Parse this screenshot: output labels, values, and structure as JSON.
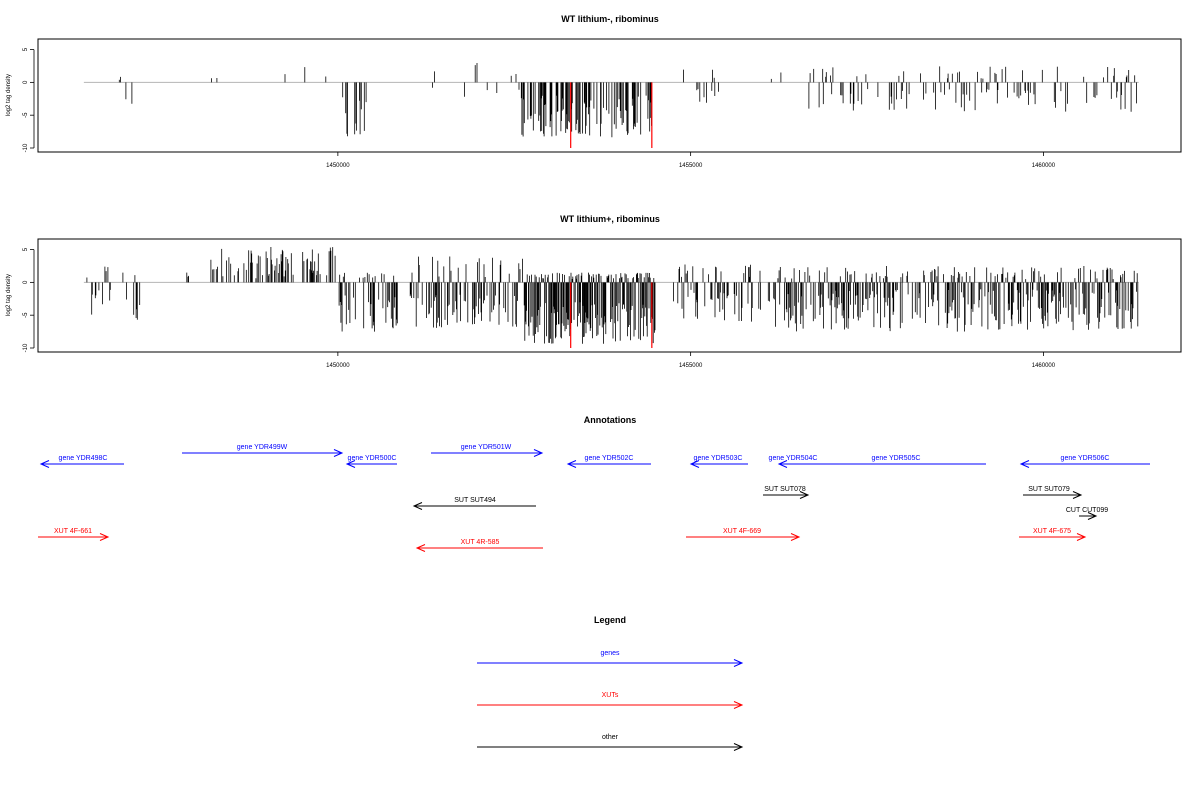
{
  "colors": {
    "genes": "#0000ff",
    "xuts": "#ff0000",
    "other": "#000000",
    "bars": "#000000",
    "highlight": "#ff0000",
    "baseline": "#b4b4b4"
  },
  "chart_data": [
    {
      "type": "bar",
      "title": "WT lithium-, ribominus",
      "ylabel": "log2 tag density",
      "ylim": [
        -10,
        6
      ],
      "yticks": [
        -10,
        -5,
        0,
        5
      ],
      "xlim": [
        1445750,
        1461950
      ],
      "xticks": [
        1450000,
        1455000,
        1460000
      ],
      "segments": [
        {
          "start": 1446400,
          "end": 1447200,
          "up": [
            0,
            3
          ],
          "down": [
            -1,
            -4.5
          ],
          "density": 0.06
        },
        {
          "start": 1448200,
          "end": 1448300,
          "up": [
            0.5,
            1
          ],
          "down": [
            0,
            0
          ],
          "density": 0.2
        },
        {
          "start": 1449200,
          "end": 1449900,
          "up": [
            0.5,
            3.5
          ],
          "down": [
            0,
            0
          ],
          "density": 0.05
        },
        {
          "start": 1450000,
          "end": 1450400,
          "up": [
            0,
            0
          ],
          "down": [
            -2,
            -8.5
          ],
          "density": 0.3
        },
        {
          "start": 1451300,
          "end": 1451400,
          "up": [
            0.5,
            2
          ],
          "down": [
            -0.5,
            -1
          ],
          "density": 0.08
        },
        {
          "start": 1451700,
          "end": 1452600,
          "up": [
            0.5,
            3
          ],
          "down": [
            -1,
            -2.5
          ],
          "density": 0.05
        },
        {
          "start": 1452600,
          "end": 1454450,
          "up": [
            0,
            0
          ],
          "down": [
            -2,
            -8.5
          ],
          "density": 0.45
        },
        {
          "start": 1454900,
          "end": 1455400,
          "up": [
            0.5,
            3.5
          ],
          "down": [
            -1,
            -3.5
          ],
          "density": 0.1
        },
        {
          "start": 1456100,
          "end": 1456300,
          "up": [
            0.5,
            2
          ],
          "down": [
            0,
            0
          ],
          "density": 0.1
        },
        {
          "start": 1456600,
          "end": 1461350,
          "up": [
            0.5,
            2.5
          ],
          "down": [
            -1,
            -4.5
          ],
          "density": 0.2
        }
      ],
      "highlights": [
        {
          "x": 1453300,
          "value": -10
        },
        {
          "x": 1454450,
          "value": -10
        }
      ]
    },
    {
      "type": "bar",
      "title": "WT lithium+, ribominus",
      "ylabel": "log2 tag density",
      "ylim": [
        -10,
        6
      ],
      "yticks": [
        -10,
        -5,
        0,
        5
      ],
      "xlim": [
        1445750,
        1461950
      ],
      "xticks": [
        1450000,
        1455000,
        1460000
      ],
      "segments": [
        {
          "start": 1446400,
          "end": 1447200,
          "up": [
            0.5,
            2.5
          ],
          "down": [
            -1,
            -6
          ],
          "density": 0.15
        },
        {
          "start": 1447800,
          "end": 1448000,
          "up": [
            0.5,
            1.5
          ],
          "down": [
            0,
            0
          ],
          "density": 0.05
        },
        {
          "start": 1448100,
          "end": 1448200,
          "up": [
            0,
            0
          ],
          "down": [
            -0.5,
            -1
          ],
          "density": 0.05
        },
        {
          "start": 1448200,
          "end": 1450000,
          "up": [
            0.5,
            5.5
          ],
          "down": [
            0,
            0
          ],
          "density": 0.35
        },
        {
          "start": 1450000,
          "end": 1450850,
          "up": [
            0.5,
            1.5
          ],
          "down": [
            -2,
            -7.5
          ],
          "density": 0.45
        },
        {
          "start": 1451000,
          "end": 1452650,
          "up": [
            0.5,
            4
          ],
          "down": [
            -1.5,
            -7
          ],
          "density": 0.45
        },
        {
          "start": 1452650,
          "end": 1454500,
          "up": [
            0.5,
            1.5
          ],
          "down": [
            -3,
            -9.5
          ],
          "density": 0.9
        },
        {
          "start": 1454750,
          "end": 1456000,
          "up": [
            0.5,
            3
          ],
          "down": [
            -1,
            -6
          ],
          "density": 0.45
        },
        {
          "start": 1456100,
          "end": 1461350,
          "up": [
            0.5,
            2.5
          ],
          "down": [
            -1,
            -7.5
          ],
          "density": 0.5
        }
      ],
      "highlights": [
        {
          "x": 1453300,
          "value": -10
        },
        {
          "x": 1454450,
          "value": -10
        }
      ]
    }
  ],
  "annotations": {
    "title": "Annotations",
    "items": [
      {
        "label": "gene YDR498C",
        "kind": "genes",
        "dir": "left"
      },
      {
        "label": "gene YDR499W",
        "kind": "genes",
        "dir": "right"
      },
      {
        "label": "gene YDR500C",
        "kind": "genes",
        "dir": "left"
      },
      {
        "label": "gene YDR501W",
        "kind": "genes",
        "dir": "right"
      },
      {
        "label": "gene YDR502C",
        "kind": "genes",
        "dir": "left"
      },
      {
        "label": "gene YDR503C",
        "kind": "genes",
        "dir": "left"
      },
      {
        "label": "gene YDR504C",
        "kind": "genes",
        "dir": "left"
      },
      {
        "label": "gene YDR505C",
        "kind": "genes",
        "dir": "left"
      },
      {
        "label": "gene YDR506C",
        "kind": "genes",
        "dir": "left"
      },
      {
        "label": "SUT SUT494",
        "kind": "other",
        "dir": "left"
      },
      {
        "label": "SUT SUT078",
        "kind": "other",
        "dir": "right"
      },
      {
        "label": "SUT SUT079",
        "kind": "other",
        "dir": "right"
      },
      {
        "label": "CUT CUT099",
        "kind": "other",
        "dir": "right"
      },
      {
        "label": "XUT 4F-661",
        "kind": "xuts",
        "dir": "right"
      },
      {
        "label": "XUT 4R-585",
        "kind": "xuts",
        "dir": "left"
      },
      {
        "label": "XUT 4F-669",
        "kind": "xuts",
        "dir": "right"
      },
      {
        "label": "XUT 4F-675",
        "kind": "xuts",
        "dir": "right"
      }
    ]
  },
  "legend": {
    "title": "Legend",
    "items": [
      {
        "label": "genes",
        "kind": "genes"
      },
      {
        "label": "XUTs",
        "kind": "xuts"
      },
      {
        "label": "other",
        "kind": "other"
      }
    ]
  }
}
